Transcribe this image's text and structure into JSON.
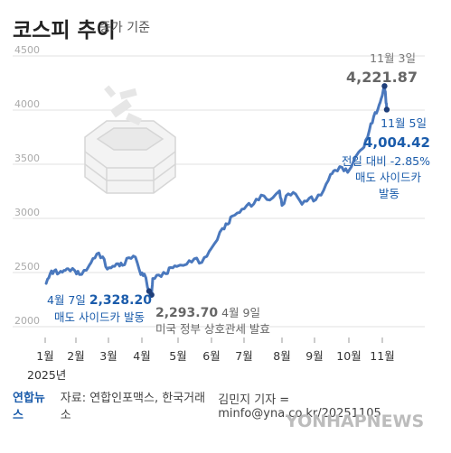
{
  "title": {
    "main": "코스피 추이",
    "sub": "종가 기준"
  },
  "chart_data": {
    "type": "line",
    "title": "코스피 추이",
    "subtitle": "종가 기준",
    "ylim": [
      2000,
      4500
    ],
    "yticks": [
      2000,
      2500,
      3000,
      3500,
      4000,
      4500
    ],
    "xticks": [
      "1월",
      "2월",
      "3월",
      "4월",
      "5월",
      "6월",
      "7월",
      "8월",
      "9월",
      "10월",
      "11월"
    ],
    "year_label": "2025년",
    "grid": true,
    "series": [
      {
        "values": [
          [
            "2025-01-02",
            2399
          ],
          [
            "2025-01-06",
            2488
          ],
          [
            "2025-01-10",
            2515
          ],
          [
            "2025-01-15",
            2497
          ],
          [
            "2025-01-20",
            2520
          ],
          [
            "2025-01-24",
            2536
          ],
          [
            "2025-01-31",
            2517
          ],
          [
            "2025-02-04",
            2481
          ],
          [
            "2025-02-10",
            2521
          ],
          [
            "2025-02-14",
            2591
          ],
          [
            "2025-02-19",
            2671
          ],
          [
            "2025-02-24",
            2645
          ],
          [
            "2025-02-28",
            2532
          ],
          [
            "2025-03-05",
            2558
          ],
          [
            "2025-03-10",
            2582
          ],
          [
            "2025-03-14",
            2566
          ],
          [
            "2025-03-20",
            2637
          ],
          [
            "2025-03-26",
            2643
          ],
          [
            "2025-03-31",
            2481
          ],
          [
            "2025-04-03",
            2486
          ],
          [
            "2025-04-07",
            2328.2
          ],
          [
            "2025-04-09",
            2293.7
          ],
          [
            "2025-04-10",
            2445
          ],
          [
            "2025-04-15",
            2477
          ],
          [
            "2025-04-21",
            2488
          ],
          [
            "2025-04-25",
            2546
          ],
          [
            "2025-04-30",
            2556
          ],
          [
            "2025-05-09",
            2577
          ],
          [
            "2025-05-16",
            2627
          ],
          [
            "2025-05-23",
            2593
          ],
          [
            "2025-05-30",
            2697
          ],
          [
            "2025-06-04",
            2770
          ],
          [
            "2025-06-11",
            2907
          ],
          [
            "2025-06-16",
            2946
          ],
          [
            "2025-06-20",
            3021
          ],
          [
            "2025-06-27",
            3055
          ],
          [
            "2025-07-03",
            3116
          ],
          [
            "2025-07-09",
            3133
          ],
          [
            "2025-07-15",
            3215
          ],
          [
            "2025-07-22",
            3169
          ],
          [
            "2025-07-30",
            3254
          ],
          [
            "2025-08-01",
            3119
          ],
          [
            "2025-08-07",
            3227
          ],
          [
            "2025-08-14",
            3225
          ],
          [
            "2025-08-20",
            3130
          ],
          [
            "2025-08-27",
            3187
          ],
          [
            "2025-09-02",
            3172
          ],
          [
            "2025-09-09",
            3260
          ],
          [
            "2025-09-15",
            3407
          ],
          [
            "2025-09-19",
            3445
          ],
          [
            "2025-09-25",
            3472
          ],
          [
            "2025-09-30",
            3424
          ],
          [
            "2025-10-10",
            3610
          ],
          [
            "2025-10-15",
            3657
          ],
          [
            "2025-10-20",
            3814
          ],
          [
            "2025-10-24",
            3941
          ],
          [
            "2025-10-28",
            4010
          ],
          [
            "2025-10-31",
            4107
          ],
          [
            "2025-11-03",
            4221.87
          ],
          [
            "2025-11-04",
            4121
          ],
          [
            "2025-11-05",
            4004.42
          ]
        ]
      }
    ],
    "annotations": [
      {
        "date_label": "11월 3일",
        "value_label": "4,221.87"
      },
      {
        "date_label": "11월 5일",
        "value_label": "4,004.42",
        "lines": [
          "전일 대비 -2.85%",
          "매도 사이드카",
          "발동"
        ]
      },
      {
        "date_label": "4월 7일",
        "value_label": "2,328.20",
        "lines": [
          "매도 사이드카 발동"
        ]
      },
      {
        "date_label": "4월 9일",
        "value_label": "2,293.70",
        "lines": [
          "미국 정부 상호관세 발효"
        ]
      }
    ],
    "colors": {
      "line": "#4a78bd",
      "annotation_blue": "#1b5cab",
      "annotation_gray": "#666666",
      "grid": "#e2e2e2"
    }
  },
  "footer": {
    "logo": "연합뉴스",
    "source": "자료: 연합인포맥스, 한국거래소",
    "credit": "김민지 기자 = minfo@yna.co.kr/20251105"
  },
  "watermark": "YONHAPNEWS"
}
